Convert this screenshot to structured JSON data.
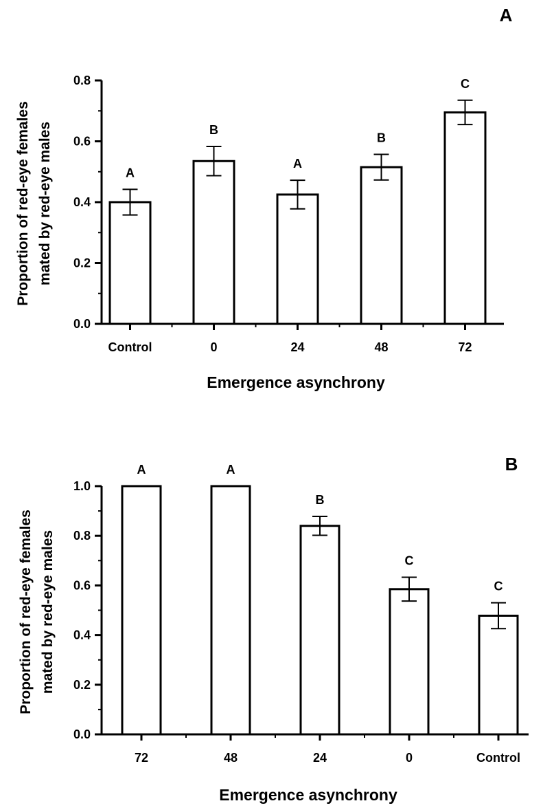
{
  "chart_data": [
    {
      "type": "bar",
      "panel_label": "A",
      "categories": [
        "Control",
        "0",
        "24",
        "48",
        "72"
      ],
      "values": [
        0.4,
        0.535,
        0.425,
        0.515,
        0.695
      ],
      "errors": [
        0.042,
        0.048,
        0.047,
        0.042,
        0.04
      ],
      "letters": [
        "A",
        "B",
        "A",
        "B",
        "C"
      ],
      "xlabel": "Emergence asynchrony",
      "ylabel_lines": [
        "Proportion of red-eye females",
        "mated by red-eye males"
      ],
      "ylim": [
        0,
        0.8
      ],
      "yticks": [
        "0.0",
        "0.2",
        "0.4",
        "0.6",
        "0.8"
      ],
      "grid": false,
      "bar_color": "#ffffff",
      "stroke_color": "#000000"
    },
    {
      "type": "bar",
      "panel_label": "B",
      "categories": [
        "72",
        "48",
        "24",
        "0",
        "Control"
      ],
      "values": [
        1.0,
        1.0,
        0.84,
        0.585,
        0.478
      ],
      "errors": [
        0,
        0,
        0.038,
        0.048,
        0.052
      ],
      "letters": [
        "A",
        "A",
        "B",
        "C",
        "C"
      ],
      "xlabel": "Emergence asynchrony",
      "ylabel_lines": [
        "Proportion of red-eye females",
        "mated by red-eye males"
      ],
      "ylim": [
        0,
        1.0
      ],
      "yticks": [
        "0.0",
        "0.2",
        "0.4",
        "0.6",
        "0.8",
        "1.0"
      ],
      "grid": false,
      "bar_color": "#ffffff",
      "stroke_color": "#000000"
    }
  ]
}
